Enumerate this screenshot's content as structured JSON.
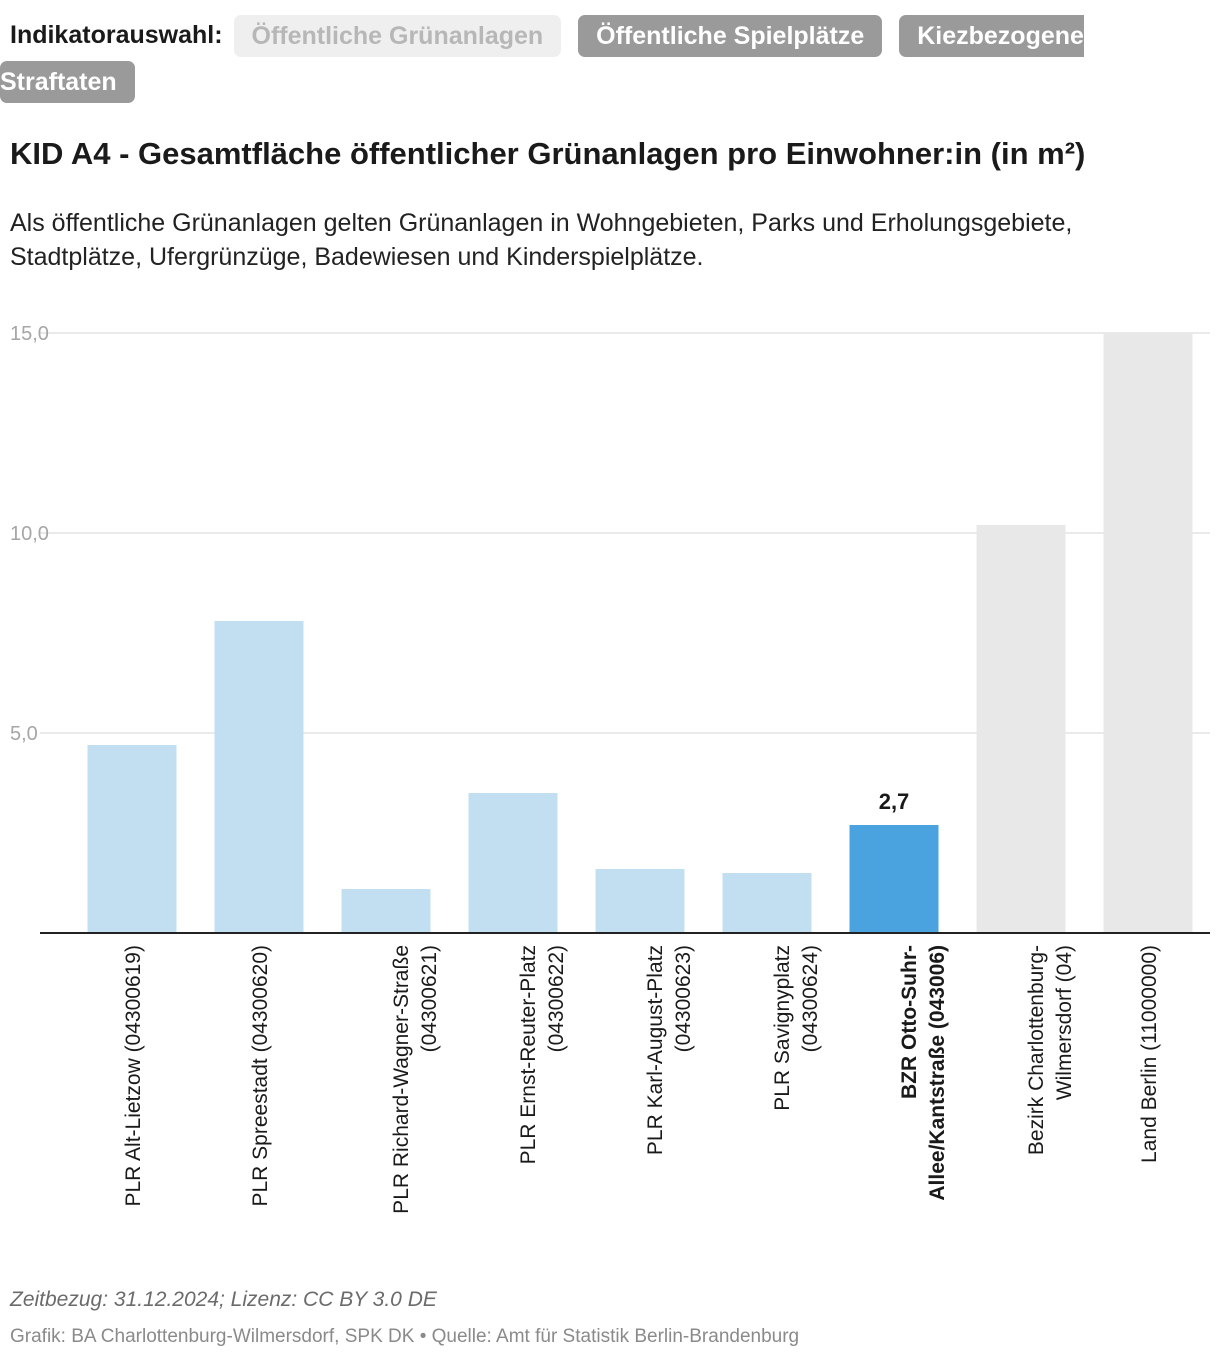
{
  "selector": {
    "label": "Indikatorauswahl:",
    "options": [
      {
        "label": "Öffentliche Grünanlagen",
        "active": true
      },
      {
        "label": "Öffentliche Spielplätze",
        "active": false
      },
      {
        "label_line1": "Kiezbezogene",
        "label_line2": "Straftaten",
        "active": false
      }
    ]
  },
  "title": "KID A4 - Gesamtfläche öffentlicher Grünanlagen pro Einwohner:in (in m²)",
  "description": "Als öffentliche Grünanlagen gelten Grünanlagen in Wohngebieten, Parks und Erholungsgebiete, Stadtplätze, Ufergrünzüge, Badewiesen und Kinderspielplätze.",
  "colors": {
    "plr": "#c2dff2",
    "selected": "#4aa3de",
    "reference": "#e8e8e8",
    "grid": "#e3e3e3",
    "axis": "#222222",
    "tick_text": "#a6a6a6"
  },
  "chart_data": {
    "type": "bar",
    "ylim": [
      0,
      15
    ],
    "yticks": [
      {
        "value": 5,
        "label": "5,0"
      },
      {
        "value": 10,
        "label": "10,0"
      },
      {
        "value": 15,
        "label": "15,0"
      }
    ],
    "grid": true,
    "bars": [
      {
        "label_lines": [
          "PLR Alt-Lietzow (04300619)"
        ],
        "value": 4.7,
        "group": "plr",
        "bold": false,
        "show_value": false
      },
      {
        "label_lines": [
          "PLR Spreestadt (04300620)"
        ],
        "value": 7.8,
        "group": "plr",
        "bold": false,
        "show_value": false
      },
      {
        "label_lines": [
          "PLR Richard-Wagner-Straße",
          "(04300621)"
        ],
        "value": 1.1,
        "group": "plr",
        "bold": false,
        "show_value": false
      },
      {
        "label_lines": [
          "PLR Ernst-Reuter-Platz",
          "(04300622)"
        ],
        "value": 3.5,
        "group": "plr",
        "bold": false,
        "show_value": false
      },
      {
        "label_lines": [
          "PLR Karl-August-Platz",
          "(04300623)"
        ],
        "value": 1.6,
        "group": "plr",
        "bold": false,
        "show_value": false
      },
      {
        "label_lines": [
          "PLR Savignyplatz",
          "(04300624)"
        ],
        "value": 1.5,
        "group": "plr",
        "bold": false,
        "show_value": false
      },
      {
        "label_lines": [
          "BZR Otto-Suhr-",
          "Allee/Kantstraße (043006)"
        ],
        "value": 2.7,
        "value_label": "2,7",
        "group": "selected",
        "bold": true,
        "show_value": true
      },
      {
        "label_lines": [
          "Bezirk Charlottenburg-",
          "Wilmersdorf (04)"
        ],
        "value": 10.2,
        "group": "reference",
        "bold": false,
        "show_value": false
      },
      {
        "label_lines": [
          "Land Berlin (11000000)"
        ],
        "value": 15.0,
        "group": "reference",
        "bold": false,
        "show_value": false
      }
    ]
  },
  "footer": {
    "meta": "Zeitbezug: 31.12.2024; Lizenz: CC BY 3.0 DE",
    "source": "Grafik: BA Charlottenburg-Wilmersdorf, SPK DK • Quelle: Amt für Statistik Berlin-Brandenburg"
  }
}
